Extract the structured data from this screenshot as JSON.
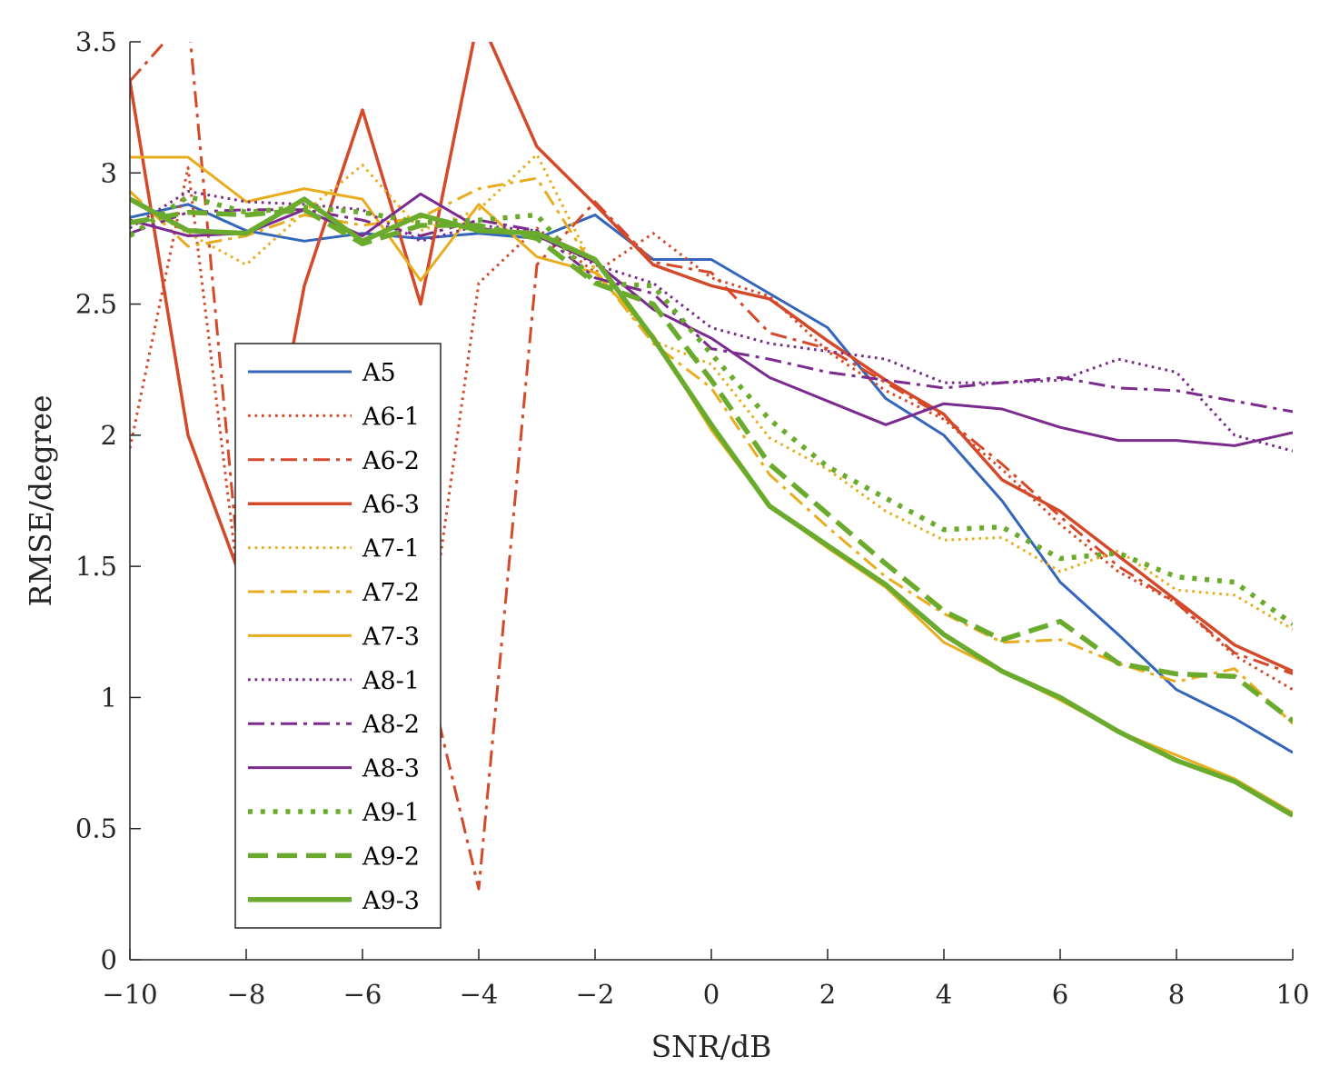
{
  "chart_data": {
    "type": "line",
    "title": "",
    "xlabel": "SNR/dB",
    "ylabel": "RMSE/degree",
    "xlim": [
      -10,
      10
    ],
    "ylim": [
      0,
      3.5
    ],
    "xticks": [
      -10,
      -8,
      -6,
      -4,
      -2,
      0,
      2,
      4,
      6,
      8,
      10
    ],
    "xtick_labels": [
      "−10",
      "−8",
      "−6",
      "−4",
      "−2",
      "0",
      "2",
      "4",
      "6",
      "8",
      "10"
    ],
    "yticks": [
      0,
      0.5,
      1,
      1.5,
      2,
      2.5,
      3,
      3.5
    ],
    "ytick_labels": [
      "0",
      "0.5",
      "1",
      "1.5",
      "2",
      "2.5",
      "3",
      "3.5"
    ],
    "grid": false,
    "legend_position": "center-left",
    "x": [
      -10,
      -9,
      -8,
      -7,
      -6,
      -5,
      -4,
      -3,
      -2,
      -1,
      0,
      1,
      2,
      3,
      4,
      5,
      6,
      7,
      8,
      9,
      10
    ],
    "series": [
      {
        "name": "A5",
        "color": "#3366bb",
        "dash": "solid",
        "width": 3,
        "values": [
          2.83,
          2.88,
          2.78,
          2.74,
          2.77,
          2.75,
          2.77,
          2.75,
          2.84,
          2.67,
          2.67,
          2.54,
          2.41,
          2.14,
          2.0,
          1.75,
          1.44,
          1.24,
          1.03,
          0.92,
          0.79
        ]
      },
      {
        "name": "A6-1",
        "color": "#d4492a",
        "dash": "dot",
        "width": 3,
        "values": [
          1.95,
          3.02,
          1.2,
          1.85,
          0.9,
          1.0,
          2.58,
          2.79,
          2.62,
          2.77,
          2.6,
          2.53,
          2.32,
          2.17,
          2.06,
          1.87,
          1.66,
          1.48,
          1.36,
          1.16,
          1.03
        ]
      },
      {
        "name": "A6-2",
        "color": "#d4492a",
        "dash": "dashdot",
        "width": 3,
        "values": [
          3.35,
          3.6,
          1.2,
          1.8,
          0.5,
          1.2,
          0.27,
          2.65,
          2.89,
          2.66,
          2.62,
          2.39,
          2.33,
          2.2,
          2.07,
          1.89,
          1.69,
          1.5,
          1.36,
          1.17,
          1.09
        ]
      },
      {
        "name": "A6-3",
        "color": "#d4492a",
        "dash": "solid",
        "width": 3.5,
        "values": [
          3.35,
          2.0,
          1.4,
          2.57,
          3.24,
          2.5,
          3.6,
          3.1,
          2.88,
          2.65,
          2.57,
          2.52,
          2.36,
          2.21,
          2.08,
          1.83,
          1.71,
          1.54,
          1.37,
          1.2,
          1.1
        ]
      },
      {
        "name": "A7-1",
        "color": "#e8ad1e",
        "dash": "dot",
        "width": 3,
        "values": [
          2.9,
          2.77,
          2.65,
          2.85,
          3.03,
          2.78,
          2.86,
          3.07,
          2.63,
          2.36,
          2.27,
          1.99,
          1.87,
          1.71,
          1.6,
          1.61,
          1.48,
          1.56,
          1.41,
          1.39,
          1.26
        ]
      },
      {
        "name": "A7-2",
        "color": "#e8ad1e",
        "dash": "dashdot",
        "width": 3,
        "values": [
          2.93,
          2.72,
          2.76,
          2.84,
          2.8,
          2.83,
          2.94,
          2.98,
          2.63,
          2.35,
          2.18,
          1.85,
          1.65,
          1.46,
          1.32,
          1.21,
          1.22,
          1.13,
          1.06,
          1.11,
          0.9
        ]
      },
      {
        "name": "A7-3",
        "color": "#e8ad1e",
        "dash": "solid",
        "width": 3,
        "values": [
          3.06,
          3.06,
          2.89,
          2.94,
          2.9,
          2.59,
          2.88,
          2.68,
          2.62,
          2.38,
          2.02,
          1.73,
          1.57,
          1.42,
          1.21,
          1.1,
          0.99,
          0.87,
          0.78,
          0.69,
          0.56
        ]
      },
      {
        "name": "A8-1",
        "color": "#7b2a8e",
        "dash": "dot",
        "width": 3,
        "values": [
          2.79,
          2.93,
          2.89,
          2.88,
          2.86,
          2.74,
          2.8,
          2.78,
          2.65,
          2.58,
          2.41,
          2.35,
          2.32,
          2.29,
          2.2,
          2.2,
          2.21,
          2.29,
          2.24,
          2.0,
          1.94
        ]
      },
      {
        "name": "A8-2",
        "color": "#7b2a8e",
        "dash": "dashdot",
        "width": 3,
        "values": [
          2.77,
          2.85,
          2.86,
          2.86,
          2.82,
          2.76,
          2.82,
          2.78,
          2.6,
          2.54,
          2.33,
          2.29,
          2.24,
          2.21,
          2.18,
          2.2,
          2.22,
          2.18,
          2.17,
          2.13,
          2.09
        ]
      },
      {
        "name": "A8-3",
        "color": "#7b2a8e",
        "dash": "solid",
        "width": 3,
        "values": [
          2.82,
          2.76,
          2.77,
          2.86,
          2.76,
          2.92,
          2.79,
          2.76,
          2.66,
          2.48,
          2.37,
          2.22,
          2.13,
          2.04,
          2.12,
          2.1,
          2.03,
          1.98,
          1.98,
          1.96,
          2.01
        ]
      },
      {
        "name": "A9-1",
        "color": "#6aaa2c",
        "dash": "dot",
        "width": 5.5,
        "values": [
          2.76,
          2.91,
          2.85,
          2.87,
          2.85,
          2.81,
          2.82,
          2.84,
          2.58,
          2.57,
          2.31,
          2.06,
          1.88,
          1.76,
          1.64,
          1.65,
          1.53,
          1.55,
          1.46,
          1.44,
          1.28
        ]
      },
      {
        "name": "A9-2",
        "color": "#6aaa2c",
        "dash": "dash",
        "width": 5.5,
        "values": [
          2.81,
          2.85,
          2.84,
          2.86,
          2.73,
          2.8,
          2.8,
          2.75,
          2.58,
          2.5,
          2.21,
          1.89,
          1.7,
          1.51,
          1.33,
          1.22,
          1.29,
          1.13,
          1.09,
          1.08,
          0.91
        ]
      },
      {
        "name": "A9-3",
        "color": "#6aaa2c",
        "dash": "solid",
        "width": 5.5,
        "values": [
          2.9,
          2.78,
          2.77,
          2.9,
          2.74,
          2.84,
          2.78,
          2.77,
          2.67,
          2.37,
          2.04,
          1.73,
          1.58,
          1.43,
          1.24,
          1.1,
          1.0,
          0.87,
          0.76,
          0.68,
          0.55
        ]
      }
    ]
  }
}
